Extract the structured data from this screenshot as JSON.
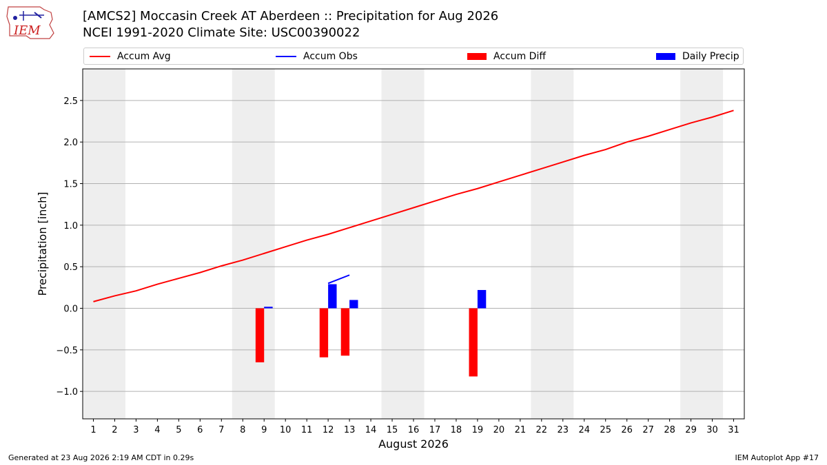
{
  "title_line1": "[AMCS2] Moccasin Creek  AT Aberdeen :: Precipitation for Aug 2026",
  "title_line2": "NCEI 1991-2020 Climate Site: USC00390022",
  "logo_text": "IEM",
  "footer_left": "Generated at 23 Aug 2026 2:19 AM CDT in 0.29s",
  "footer_right": "IEM Autoplot App #17",
  "legend": [
    {
      "label": "Accum Avg",
      "kind": "line",
      "color": "#ff0000"
    },
    {
      "label": "Accum Obs",
      "kind": "line",
      "color": "#0000ff"
    },
    {
      "label": "Accum Diff",
      "kind": "box",
      "color": "#ff0000"
    },
    {
      "label": "Daily Precip",
      "kind": "box",
      "color": "#0000ff"
    }
  ],
  "chart_data": {
    "type": "bar",
    "xlabel": "August 2026",
    "ylabel": "Precipitation [inch]",
    "xlim": [
      0.5,
      31.5
    ],
    "ylim": [
      -1.33,
      2.88
    ],
    "xticks": [
      1,
      2,
      3,
      4,
      5,
      6,
      7,
      8,
      9,
      10,
      11,
      12,
      13,
      14,
      15,
      16,
      17,
      18,
      19,
      20,
      21,
      22,
      23,
      24,
      25,
      26,
      27,
      28,
      29,
      30,
      31
    ],
    "yticks": [
      -1.0,
      -0.5,
      0.0,
      0.5,
      1.0,
      1.5,
      2.0,
      2.5
    ],
    "ytick_labels": [
      "−1.0",
      "−0.5",
      "0.0",
      "0.5",
      "1.0",
      "1.5",
      "2.0",
      "2.5"
    ],
    "grid": "horizontal",
    "weekend_shading": [
      [
        1,
        2
      ],
      [
        8,
        9
      ],
      [
        15,
        16
      ],
      [
        22,
        23
      ],
      [
        29,
        30
      ]
    ],
    "series": [
      {
        "name": "Accum Avg",
        "type": "line",
        "color": "#ff0000",
        "x": [
          1,
          2,
          3,
          4,
          5,
          6,
          7,
          8,
          9,
          10,
          11,
          12,
          13,
          14,
          15,
          16,
          17,
          18,
          19,
          20,
          21,
          22,
          23,
          24,
          25,
          26,
          27,
          28,
          29,
          30,
          31
        ],
        "values": [
          0.08,
          0.15,
          0.21,
          0.29,
          0.36,
          0.43,
          0.51,
          0.58,
          0.66,
          0.74,
          0.82,
          0.89,
          0.97,
          1.05,
          1.13,
          1.21,
          1.29,
          1.37,
          1.44,
          1.52,
          1.6,
          1.68,
          1.76,
          1.84,
          1.91,
          2.0,
          2.07,
          2.15,
          2.23,
          2.3,
          2.38
        ]
      },
      {
        "name": "Accum Obs",
        "type": "line",
        "color": "#0000ff",
        "x": [
          9,
          12,
          13
        ],
        "values": [
          0.01,
          0.3,
          0.4
        ],
        "segments": [
          [
            9
          ],
          [
            12,
            13
          ]
        ]
      },
      {
        "name": "Accum Diff",
        "type": "bar",
        "color": "#ff0000",
        "x": [
          9,
          12,
          13,
          19
        ],
        "values": [
          -0.65,
          -0.59,
          -0.57,
          -0.82
        ]
      },
      {
        "name": "Daily Precip",
        "type": "bar",
        "color": "#0000ff",
        "x": [
          9,
          12,
          13,
          19
        ],
        "values": [
          0.01,
          0.29,
          0.1,
          0.22
        ]
      }
    ]
  }
}
